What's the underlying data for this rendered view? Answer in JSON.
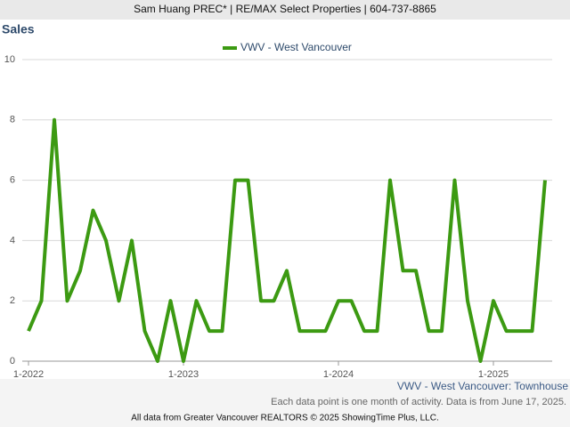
{
  "header": "Sam Huang PREC* | RE/MAX Select Properties | 604-737-8865",
  "chart_data": {
    "type": "line",
    "title": "Sales",
    "subtitle": "VWV - West Vancouver: Townhouse",
    "note": "Each data point is one month of activity. Data is from June 17, 2025.",
    "categories": [
      "1-2022",
      null,
      null,
      null,
      null,
      null,
      null,
      null,
      null,
      null,
      null,
      null,
      "1-2023",
      null,
      null,
      null,
      null,
      null,
      null,
      null,
      null,
      null,
      null,
      null,
      "1-2024",
      null,
      null,
      null,
      null,
      null,
      null,
      null,
      null,
      null,
      null,
      null,
      "1-2025",
      null,
      null,
      null,
      null
    ],
    "series": [
      {
        "name": "VWV - West Vancouver",
        "color": "#3c9a12",
        "values": [
          1,
          2,
          8,
          2,
          3,
          5,
          4,
          2,
          4,
          1,
          0,
          2,
          0,
          2,
          1,
          1,
          6,
          6,
          2,
          2,
          3,
          1,
          1,
          1,
          2,
          2,
          1,
          1,
          6,
          3,
          3,
          1,
          1,
          6,
          2,
          0,
          2,
          1,
          1,
          1,
          6
        ]
      }
    ],
    "ylim": [
      0,
      10
    ],
    "yticks": [
      0,
      2,
      4,
      6,
      8,
      10
    ],
    "grid": true,
    "legend": "top"
  },
  "footer": "All data from Greater Vancouver REALTORS © 2025 ShowingTime Plus, LLC."
}
